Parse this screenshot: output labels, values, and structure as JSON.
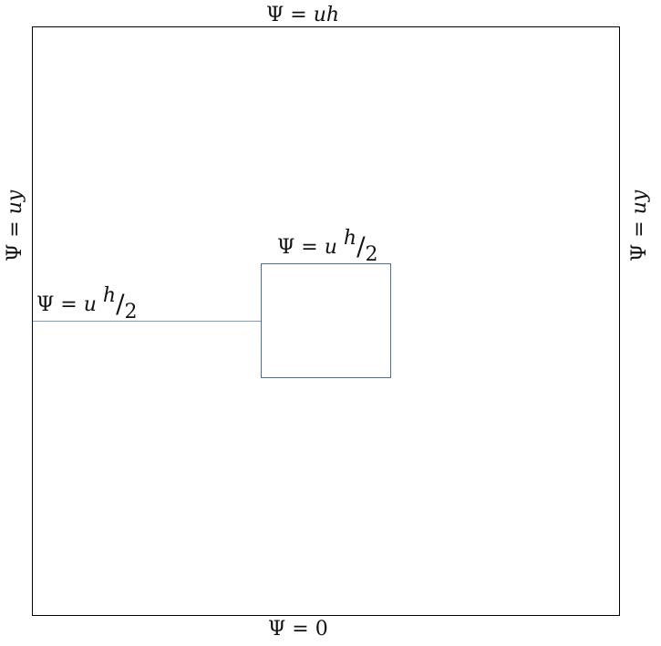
{
  "labels": {
    "top": {
      "psi": "Ψ",
      "eq": " = ",
      "var": "uh"
    },
    "bottom": {
      "psi": "Ψ",
      "eq": " = ",
      "value": "0"
    },
    "left": {
      "psi": "Ψ",
      "eq": " = ",
      "var": "uy"
    },
    "right": {
      "psi": "Ψ",
      "eq": " = ",
      "var": "uy"
    },
    "block_top": {
      "psi": "Ψ",
      "eq": " = ",
      "var": "u",
      "num": "h",
      "slash": "/",
      "den": "2"
    },
    "line": {
      "psi": "Ψ",
      "eq": " = ",
      "var": "u",
      "num": "h",
      "slash": "/",
      "den": "2"
    }
  },
  "colors": {
    "outer_border": "#000000",
    "block_border": "#4a6fa5",
    "line": "#7a9cc6"
  }
}
